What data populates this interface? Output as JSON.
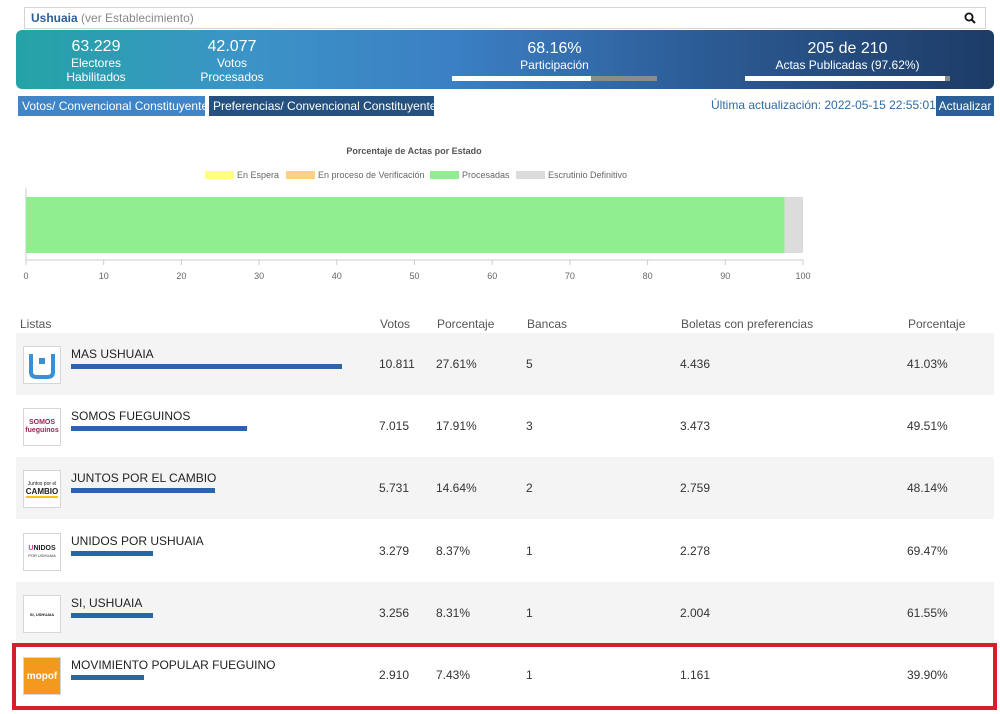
{
  "search": {
    "location": "Ushuaia",
    "hint": "(ver Establecimiento)"
  },
  "summary": {
    "electores": {
      "value": "63.229",
      "label": "Electores Habilitados"
    },
    "votos": {
      "value": "42.077",
      "label": "Votos Procesados"
    },
    "participacion": {
      "value": "68.16%",
      "label": "Participación",
      "progress": 0.68
    },
    "actas": {
      "value": "205 de 210",
      "label": "Actas Publicadas (97.62%)",
      "progress": 0.976
    }
  },
  "tabs": {
    "votos": "Votos/ Convencional Constituyente",
    "preferencias": "Preferencias/ Convencional Constituyente"
  },
  "update": {
    "text": "Última actualización: 2022-05-15 22:55:01",
    "button": "Actualizar"
  },
  "chart_data": {
    "type": "bar",
    "orientation": "horizontal-stacked",
    "title": "Porcentaje de Actas por Estado",
    "legend": [
      "En Espera",
      "En proceso de Verificación",
      "Procesadas",
      "Escrutinio Definitivo"
    ],
    "legend_colors": [
      "#ffff80",
      "#ffd27f",
      "#90ee90",
      "#dcdcdc"
    ],
    "series": [
      {
        "name": "En Espera",
        "values": [
          0
        ]
      },
      {
        "name": "En proceso de Verificación",
        "values": [
          0
        ]
      },
      {
        "name": "Procesadas",
        "values": [
          97.62
        ]
      },
      {
        "name": "Escrutinio Definitivo",
        "values": [
          2.38
        ]
      }
    ],
    "xlim": [
      0,
      100
    ],
    "xticks": [
      "0",
      "10",
      "20",
      "30",
      "40",
      "50",
      "60",
      "70",
      "80",
      "90",
      "100"
    ],
    "legend_position": "top"
  },
  "table": {
    "headers": {
      "listas": "Listas",
      "votos": "Votos",
      "porcentaje": "Porcentaje",
      "bancas": "Bancas",
      "boletas": "Boletas con preferencias",
      "porcentaje2": "Porcentaje"
    },
    "rows": [
      {
        "name": "MAS USHUAIA",
        "votos": "10.811",
        "porcentaje": "27.61%",
        "share": 27.61,
        "bancas": "5",
        "boletas": "4.436",
        "pref_pct": "41.03%",
        "logo_text": "",
        "logo_icon": "mas-ushuaia-logo-icon"
      },
      {
        "name": "SOMOS FUEGUINOS",
        "votos": "7.015",
        "porcentaje": "17.91%",
        "share": 17.91,
        "bancas": "3",
        "boletas": "3.473",
        "pref_pct": "49.51%",
        "logo_text": "SOMOS fueguinos",
        "logo_icon": "somos-fueguinos-logo-icon"
      },
      {
        "name": "JUNTOS POR EL CAMBIO",
        "votos": "5.731",
        "porcentaje": "14.64%",
        "share": 14.64,
        "bancas": "2",
        "boletas": "2.759",
        "pref_pct": "48.14%",
        "logo_text": "Juntos por el CAMBIO",
        "logo_icon": "juntos-por-el-cambio-logo-icon"
      },
      {
        "name": "UNIDOS POR USHUAIA",
        "votos": "3.279",
        "porcentaje": "8.37%",
        "share": 8.37,
        "bancas": "1",
        "boletas": "2.278",
        "pref_pct": "69.47%",
        "logo_text": "UNIDOS POR USHUAIA",
        "logo_icon": "unidos-por-ushuaia-logo-icon"
      },
      {
        "name": "SI, USHUAIA",
        "votos": "3.256",
        "porcentaje": "8.31%",
        "share": 8.31,
        "bancas": "1",
        "boletas": "2.004",
        "pref_pct": "61.55%",
        "logo_text": "SI, USHUAIA",
        "logo_icon": "si-ushuaia-logo-icon"
      },
      {
        "name": "MOVIMIENTO POPULAR FUEGUINO",
        "votos": "2.910",
        "porcentaje": "7.43%",
        "share": 7.43,
        "bancas": "1",
        "boletas": "1.161",
        "pref_pct": "39.90%",
        "logo_text": "mopof",
        "logo_icon": "mopof-logo-icon"
      }
    ]
  }
}
